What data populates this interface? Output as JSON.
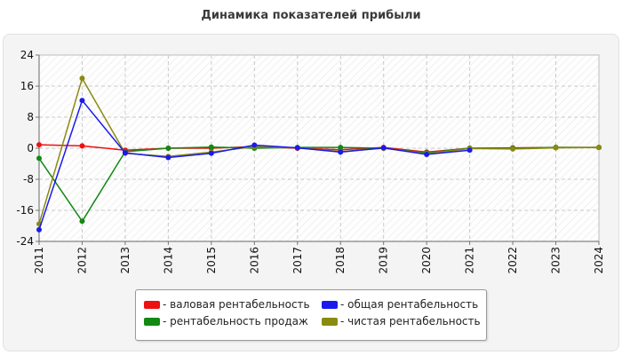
{
  "chart_data": {
    "type": "line",
    "title": "Динамика показателей прибыли",
    "xlabel": "",
    "ylabel": "",
    "x": [
      "2011",
      "2012",
      "2013",
      "2014",
      "2015",
      "2016",
      "2017",
      "2018",
      "2019",
      "2020",
      "2021",
      "2022",
      "2023",
      "2024"
    ],
    "yticks": [
      "24",
      "16",
      "8",
      "0",
      "-8",
      "-16",
      "-24"
    ],
    "ylim": [
      -24,
      24
    ],
    "grid": true,
    "legend_position": "bottom",
    "series": [
      {
        "name": "валовая рентабельность",
        "label": "- валовая рентабельность",
        "color": "#ee1111",
        "values": [
          0.9,
          0.6,
          -0.5,
          0.0,
          0.0,
          0.4,
          0.0,
          -0.4,
          0.2,
          -1.0,
          0.0,
          0.1,
          0.2,
          0.2
        ]
      },
      {
        "name": "общая рентабельность",
        "label": "- общая рентабельность",
        "color": "#1a1aee",
        "values": [
          -21.0,
          12.3,
          -1.2,
          -2.4,
          -1.3,
          0.8,
          0.1,
          -1.0,
          0.1,
          -1.6,
          -0.5,
          null,
          null,
          null
        ]
      },
      {
        "name": "рентабельность продаж",
        "label": "- рентабельность продаж",
        "color": "#138813",
        "values": [
          -2.6,
          -18.8,
          -0.9,
          0.0,
          0.3,
          0.0,
          0.2,
          0.2,
          0.0,
          -1.2,
          0.0,
          0.0,
          0.2,
          0.2
        ]
      },
      {
        "name": "чистая рентабельность",
        "label": "- чистая рентабельность",
        "color": "#8a8a10",
        "values": [
          -19.5,
          18.0,
          -1.3,
          -2.1,
          -1.0,
          0.4,
          0.1,
          -0.9,
          0.0,
          -1.4,
          -0.1,
          -0.2,
          0.1,
          0.2
        ]
      }
    ]
  }
}
